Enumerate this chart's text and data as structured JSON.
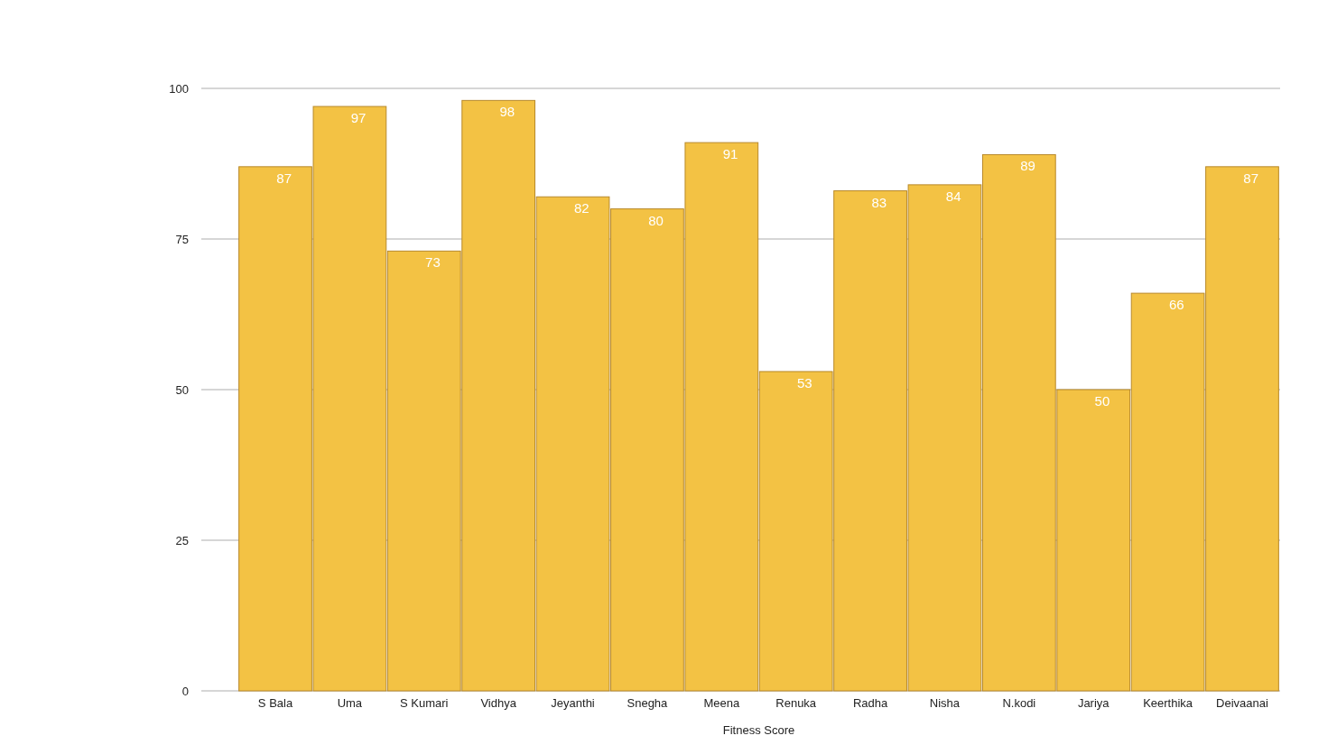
{
  "chart_data": {
    "type": "bar",
    "xlabel": "Fitness Score",
    "categories": [
      "S Bala",
      "Uma",
      "S Kumari",
      "Vidhya",
      "Jeyanthi",
      "Snegha",
      "Meena",
      "Renuka",
      "Radha",
      "Nisha",
      "N.kodi",
      "Jariya",
      "Keerthika",
      "Deivaanai"
    ],
    "values": [
      87,
      97,
      73,
      98,
      82,
      80,
      91,
      53,
      83,
      84,
      89,
      50,
      66,
      87
    ],
    "color": "#f3c244",
    "ylim": [
      0,
      100
    ],
    "yticks": [
      0,
      25,
      50,
      75,
      100
    ],
    "grid": "y",
    "data_labels": true
  }
}
